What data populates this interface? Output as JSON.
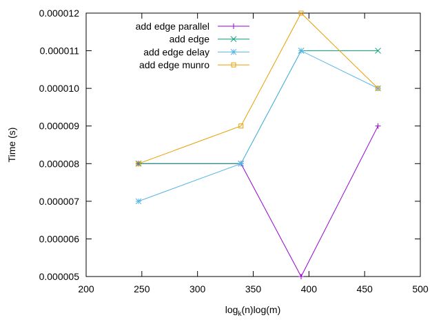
{
  "chart_data": {
    "type": "line",
    "title": "",
    "xlabel_main": "log",
    "xlabel_sub": "k",
    "xlabel_rest": "(n)log(m)",
    "ylabel": "Time (s)",
    "xlim": [
      200,
      500
    ],
    "ylim": [
      5e-06,
      1.2e-05
    ],
    "xticks": [
      200,
      250,
      300,
      350,
      400,
      450,
      500
    ],
    "xtick_labels": [
      "200",
      "250",
      "300",
      "350",
      "400",
      "450",
      "500"
    ],
    "yticks": [
      5e-06,
      6e-06,
      7e-06,
      8e-06,
      9e-06,
      1e-05,
      1.1e-05,
      1.2e-05
    ],
    "ytick_labels": [
      "0.000005",
      "0.000006",
      "0.000007",
      "0.000008",
      "0.000009",
      "0.000010",
      "0.000011",
      "0.000012"
    ],
    "grid": false,
    "legend_position": "top-left",
    "series": [
      {
        "name": "add edge parallel",
        "color": "#9400d3",
        "marker": "plus",
        "x": [
          247,
          339,
          393,
          462
        ],
        "y": [
          8e-06,
          8e-06,
          5e-06,
          9e-06
        ]
      },
      {
        "name": "add edge",
        "color": "#009e73",
        "marker": "cross",
        "x": [
          247,
          339,
          393,
          462
        ],
        "y": [
          8e-06,
          8e-06,
          1.1e-05,
          1.1e-05
        ]
      },
      {
        "name": "add edge delay",
        "color": "#56b4e9",
        "marker": "star",
        "x": [
          247,
          339,
          393,
          462
        ],
        "y": [
          7e-06,
          8e-06,
          1.1e-05,
          1e-05
        ]
      },
      {
        "name": "add edge munro",
        "color": "#e69f00",
        "marker": "square",
        "x": [
          247,
          339,
          393,
          462
        ],
        "y": [
          8e-06,
          9e-06,
          1.2e-05,
          1e-05
        ]
      }
    ]
  }
}
